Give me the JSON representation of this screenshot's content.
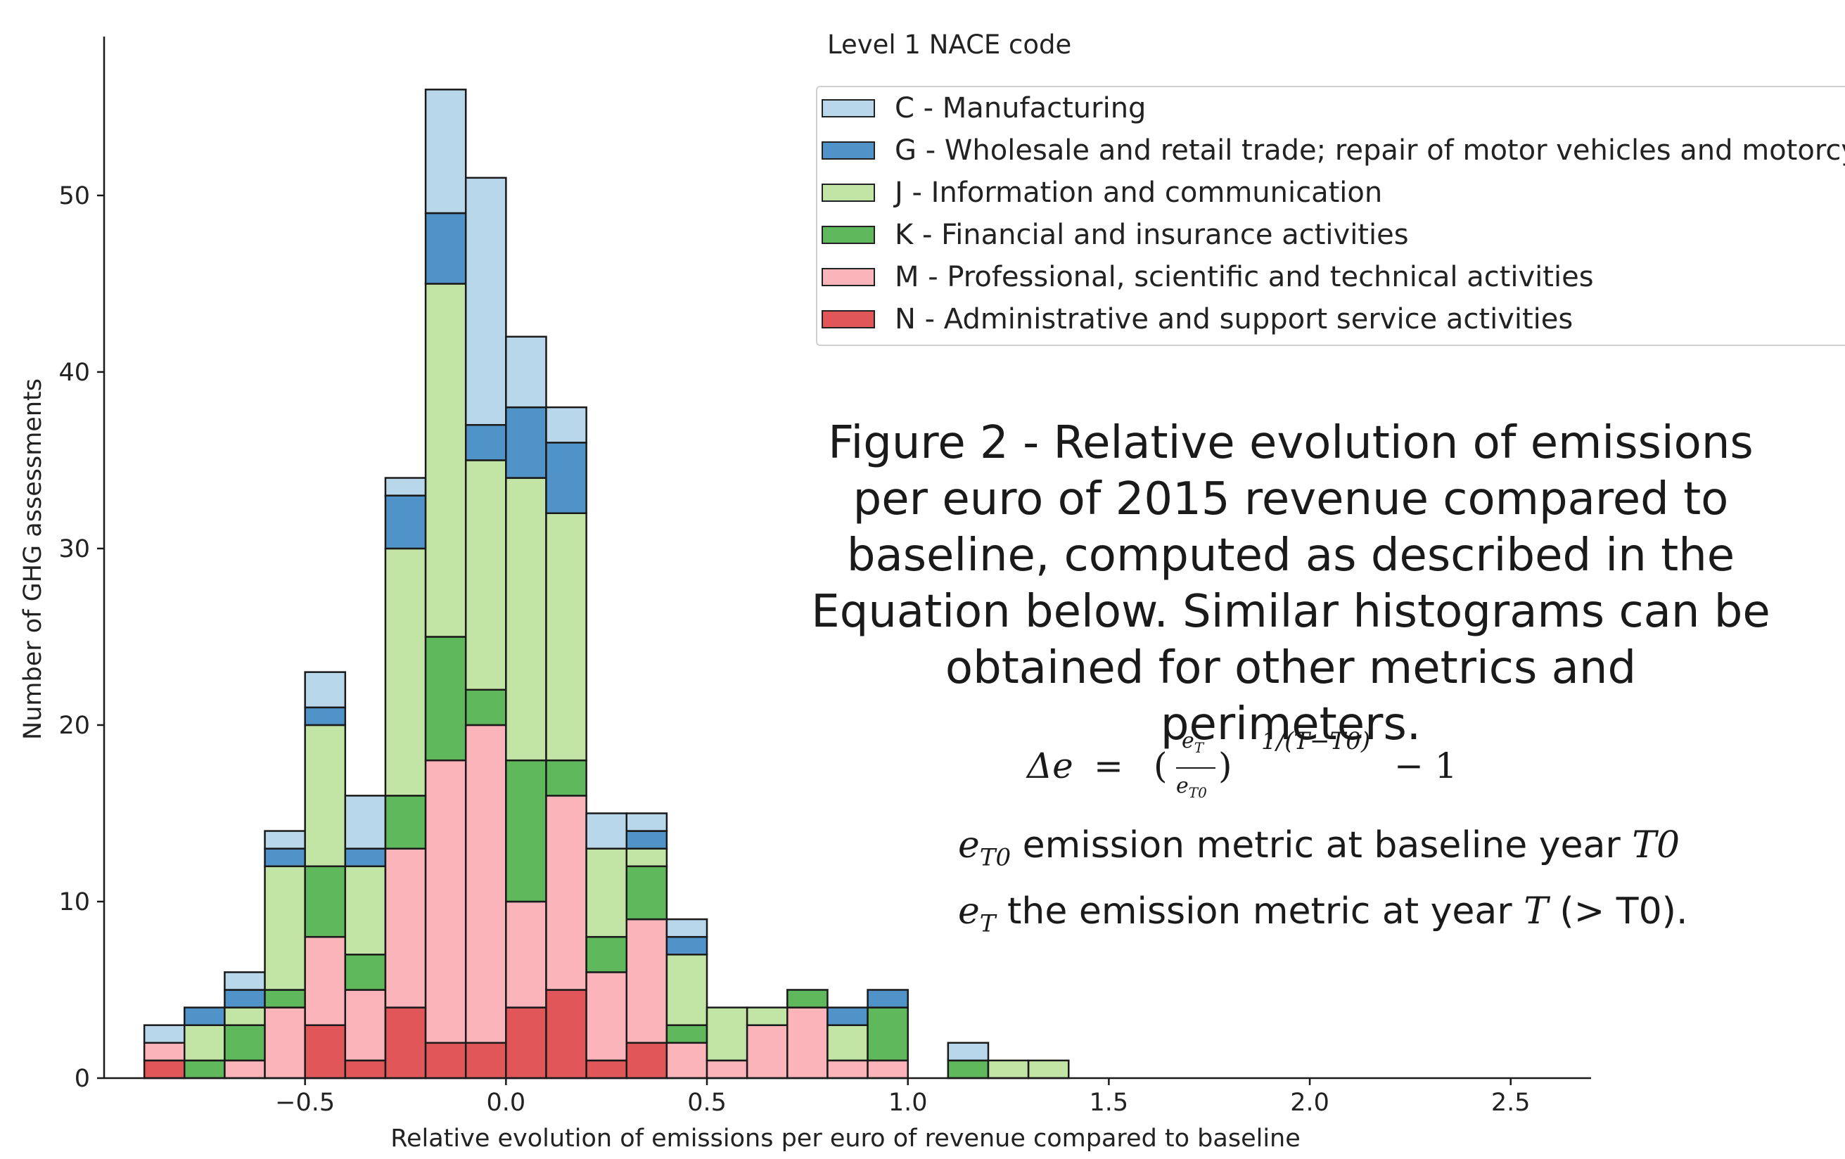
{
  "chart_data": {
    "type": "bar",
    "stacked": true,
    "histogram": true,
    "bin_width": 0.1,
    "bin_starts": [
      -0.9,
      -0.8,
      -0.7,
      -0.6,
      -0.5,
      -0.4,
      -0.3,
      -0.2,
      -0.1,
      0.0,
      0.1,
      0.2,
      0.3,
      0.4,
      0.5,
      0.6,
      0.7,
      0.8,
      0.9,
      1.0,
      1.1,
      1.2,
      1.3,
      1.4
    ],
    "xlabel": "Relative evolution of emissions per euro of revenue compared to baseline",
    "ylabel": "Number of GHG assessments",
    "xlim": [
      -1.0,
      2.7
    ],
    "ylim": [
      0,
      59
    ],
    "x_ticks": [
      -0.5,
      0.0,
      0.5,
      1.0,
      1.5,
      2.0,
      2.5
    ],
    "x_tick_labels": [
      "−0.5",
      "0.0",
      "0.5",
      "1.0",
      "1.5",
      "2.0",
      "2.5"
    ],
    "y_ticks": [
      0,
      10,
      20,
      30,
      40,
      50
    ],
    "y_tick_labels": [
      "0",
      "10",
      "20",
      "30",
      "40",
      "50"
    ],
    "grid": false,
    "legend_title": "Level 1 NACE code",
    "legend_placement": "top-right",
    "series": [
      {
        "name": "N - Administrative and support service activities",
        "color": "#e15759",
        "values": [
          1,
          0,
          0,
          0,
          3,
          1,
          4,
          2,
          2,
          4,
          5,
          1,
          2,
          0,
          0,
          0,
          0,
          0,
          0,
          0,
          0,
          0,
          0,
          0
        ]
      },
      {
        "name": "M - Professional, scientific and technical activities",
        "color": "#fbb4b9",
        "values": [
          1,
          0,
          1,
          4,
          5,
          4,
          9,
          16,
          18,
          6,
          11,
          5,
          7,
          2,
          1,
          3,
          4,
          1,
          1,
          0,
          0,
          0,
          0,
          0
        ]
      },
      {
        "name": "K - Financial and insurance activities",
        "color": "#5fb85c",
        "values": [
          0,
          1,
          2,
          1,
          4,
          2,
          3,
          7,
          2,
          8,
          2,
          2,
          3,
          1,
          0,
          0,
          1,
          0,
          3,
          0,
          1,
          0,
          0,
          0
        ]
      },
      {
        "name": "J - Information and communication",
        "color": "#c2e5a5",
        "values": [
          0,
          2,
          1,
          7,
          8,
          5,
          14,
          20,
          13,
          16,
          14,
          5,
          1,
          4,
          3,
          1,
          0,
          2,
          0,
          0,
          0,
          1,
          1,
          0
        ]
      },
      {
        "name": "G - Wholesale and retail trade; repair of motor vehicles and motorcycles",
        "color": "#4f93c8",
        "values": [
          0,
          1,
          1,
          1,
          1,
          1,
          3,
          4,
          2,
          4,
          4,
          0,
          1,
          1,
          0,
          0,
          0,
          1,
          1,
          0,
          0,
          0,
          0,
          0
        ]
      },
      {
        "name": "C - Manufacturing",
        "color": "#b9d7ea",
        "values": [
          1,
          0,
          1,
          1,
          2,
          3,
          1,
          7,
          14,
          4,
          2,
          2,
          1,
          1,
          0,
          0,
          0,
          0,
          0,
          0,
          1,
          0,
          0,
          0
        ]
      }
    ],
    "legend_order": [
      5,
      4,
      3,
      2,
      1,
      0
    ]
  },
  "caption": {
    "lines": [
      "Figure 2 - Relative evolution of emissions",
      "per euro of 2015 revenue compared to",
      "baseline, computed as described in the",
      "Equation below. Similar histograms can be",
      "obtained for other metrics and perimeters."
    ]
  },
  "equation": {
    "lhs": "Δe",
    "equals": "=",
    "open_paren": "(",
    "numerator": "e",
    "numerator_sub": "T",
    "denominator": "e",
    "denominator_sub": "T0",
    "close_paren": ")",
    "exponent": "1/(T−T0)",
    "minus_one": "− 1"
  },
  "definitions": [
    {
      "var": "e",
      "sub": "T0",
      "text_before": " emission metric at baseline year ",
      "var2": "T0",
      "text_after": ""
    },
    {
      "var": "e",
      "sub": "T",
      "text_before": " the emission metric at year ",
      "var2": "T",
      "text_after": " (> T0)."
    }
  ]
}
